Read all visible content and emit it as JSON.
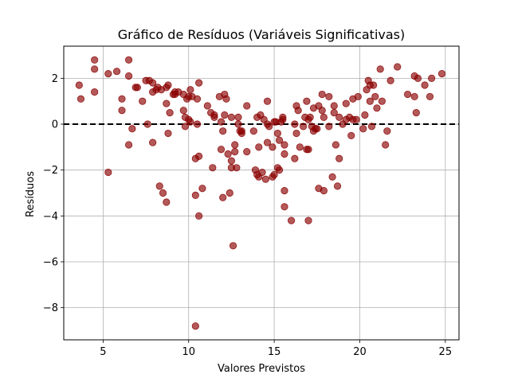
{
  "chart_data": {
    "type": "scatter",
    "title": "Gráfico de Resíduos (Variáveis Significativas)",
    "xlabel": "Valores Previstos",
    "ylabel": "Resíduos",
    "xlim": [
      2.7,
      25.8
    ],
    "ylim": [
      -9.4,
      3.4
    ],
    "xticks": [
      5,
      10,
      15,
      20,
      25
    ],
    "xtick_labels": [
      "5",
      "10",
      "15",
      "20",
      "25"
    ],
    "yticks": [
      -8,
      -6,
      -4,
      -2,
      0,
      2
    ],
    "ytick_labels": [
      "−8",
      "−6",
      "−4",
      "−2",
      "0",
      "2"
    ],
    "grid": true,
    "reference_line": 0,
    "colors": {
      "points": "#8b0000",
      "reference_line": "#000000",
      "grid": "#b0b0b0"
    },
    "points": [
      [
        3.6,
        1.7
      ],
      [
        3.7,
        1.1
      ],
      [
        4.5,
        2.8
      ],
      [
        4.5,
        2.4
      ],
      [
        4.5,
        1.4
      ],
      [
        5.3,
        2.2
      ],
      [
        5.3,
        -2.1
      ],
      [
        5.8,
        2.3
      ],
      [
        6.1,
        1.1
      ],
      [
        6.1,
        0.6
      ],
      [
        6.5,
        2.8
      ],
      [
        6.5,
        2.1
      ],
      [
        6.5,
        -0.9
      ],
      [
        6.7,
        -0.2
      ],
      [
        6.9,
        1.6
      ],
      [
        7.0,
        1.6
      ],
      [
        7.3,
        1.0
      ],
      [
        7.5,
        1.9
      ],
      [
        7.6,
        0.0
      ],
      [
        7.7,
        1.9
      ],
      [
        7.9,
        1.8
      ],
      [
        7.9,
        1.4
      ],
      [
        7.9,
        -0.8
      ],
      [
        8.1,
        1.5
      ],
      [
        8.2,
        1.6
      ],
      [
        8.3,
        -2.7
      ],
      [
        8.4,
        1.5
      ],
      [
        8.5,
        -3.0
      ],
      [
        8.7,
        1.6
      ],
      [
        8.7,
        0.9
      ],
      [
        8.7,
        -3.4
      ],
      [
        8.8,
        1.7
      ],
      [
        8.8,
        -0.4
      ],
      [
        8.9,
        0.5
      ],
      [
        9.1,
        1.3
      ],
      [
        9.2,
        1.3
      ],
      [
        9.2,
        1.4
      ],
      [
        9.4,
        1.4
      ],
      [
        9.7,
        0.6
      ],
      [
        9.7,
        1.3
      ],
      [
        9.8,
        0.3
      ],
      [
        9.8,
        -0.1
      ],
      [
        9.9,
        1.1
      ],
      [
        10.0,
        1.2
      ],
      [
        10.0,
        0.2
      ],
      [
        10.1,
        1.5
      ],
      [
        10.1,
        0.1
      ],
      [
        10.2,
        1.2
      ],
      [
        10.4,
        -1.5
      ],
      [
        10.4,
        -3.1
      ],
      [
        10.4,
        -8.8
      ],
      [
        10.5,
        1.1
      ],
      [
        10.5,
        0.0
      ],
      [
        10.6,
        1.8
      ],
      [
        10.6,
        -4.0
      ],
      [
        10.6,
        -1.4
      ],
      [
        10.8,
        -2.8
      ],
      [
        11.1,
        0.8
      ],
      [
        11.3,
        0.5
      ],
      [
        11.4,
        -1.9
      ],
      [
        11.5,
        0.4
      ],
      [
        11.5,
        0.3
      ],
      [
        11.8,
        1.2
      ],
      [
        11.9,
        0.1
      ],
      [
        11.9,
        -1.1
      ],
      [
        12.0,
        -0.3
      ],
      [
        12.0,
        -3.2
      ],
      [
        12.1,
        1.3
      ],
      [
        12.1,
        0.4
      ],
      [
        12.2,
        1.1
      ],
      [
        12.3,
        -1.3
      ],
      [
        12.4,
        -3.0
      ],
      [
        12.5,
        0.3
      ],
      [
        12.5,
        -1.6
      ],
      [
        12.5,
        -1.9
      ],
      [
        12.6,
        -5.3
      ],
      [
        12.7,
        -1.2
      ],
      [
        12.7,
        -0.9
      ],
      [
        12.8,
        -1.9
      ],
      [
        12.9,
        0.3
      ],
      [
        12.9,
        0.0
      ],
      [
        13.0,
        -0.3
      ],
      [
        13.1,
        -0.4
      ],
      [
        13.1,
        -0.3
      ],
      [
        13.4,
        0.8
      ],
      [
        13.4,
        -1.2
      ],
      [
        13.8,
        -0.3
      ],
      [
        13.9,
        -2.0
      ],
      [
        14.0,
        -2.2
      ],
      [
        14.0,
        0.3
      ],
      [
        14.1,
        -2.3
      ],
      [
        14.1,
        -1.0
      ],
      [
        14.2,
        0.4
      ],
      [
        14.3,
        -2.1
      ],
      [
        14.4,
        0.2
      ],
      [
        14.5,
        -2.4
      ],
      [
        14.6,
        1.0
      ],
      [
        14.6,
        -0.8
      ],
      [
        14.6,
        0.0
      ],
      [
        14.7,
        -0.1
      ],
      [
        14.9,
        -2.3
      ],
      [
        14.9,
        -1.0
      ],
      [
        15.0,
        0.1
      ],
      [
        15.0,
        -2.2
      ],
      [
        15.1,
        0.1
      ],
      [
        15.2,
        -0.4
      ],
      [
        15.2,
        -1.9
      ],
      [
        15.3,
        -2.0
      ],
      [
        15.3,
        -0.7
      ],
      [
        15.4,
        0.1
      ],
      [
        15.5,
        0.3
      ],
      [
        15.5,
        0.2
      ],
      [
        15.6,
        -2.9
      ],
      [
        15.6,
        -3.6
      ],
      [
        15.6,
        -1.3
      ],
      [
        15.6,
        -0.9
      ],
      [
        16.0,
        -4.2
      ],
      [
        16.2,
        0.0
      ],
      [
        16.2,
        -1.5
      ],
      [
        16.3,
        0.8
      ],
      [
        16.3,
        -0.4
      ],
      [
        16.4,
        0.6
      ],
      [
        16.5,
        -1.0
      ],
      [
        16.7,
        -0.1
      ],
      [
        16.8,
        0.3
      ],
      [
        16.9,
        1.0
      ],
      [
        16.9,
        -1.1
      ],
      [
        17.0,
        -1.1
      ],
      [
        17.0,
        -4.2
      ],
      [
        17.0,
        0.2
      ],
      [
        17.1,
        0.3
      ],
      [
        17.2,
        -0.1
      ],
      [
        17.3,
        0.7
      ],
      [
        17.3,
        -0.3
      ],
      [
        17.4,
        -0.2
      ],
      [
        17.5,
        -0.2
      ],
      [
        17.6,
        0.8
      ],
      [
        17.6,
        -2.8
      ],
      [
        17.8,
        1.3
      ],
      [
        17.8,
        0.6
      ],
      [
        17.9,
        -2.9
      ],
      [
        17.9,
        0.3
      ],
      [
        18.2,
        1.2
      ],
      [
        18.2,
        -0.1
      ],
      [
        18.4,
        -2.3
      ],
      [
        18.5,
        0.8
      ],
      [
        18.5,
        0.5
      ],
      [
        18.6,
        -0.9
      ],
      [
        18.7,
        -2.7
      ],
      [
        18.8,
        -1.5
      ],
      [
        18.8,
        0.3
      ],
      [
        19.0,
        0.0
      ],
      [
        19.2,
        0.9
      ],
      [
        19.2,
        0.2
      ],
      [
        19.4,
        0.3
      ],
      [
        19.5,
        -0.5
      ],
      [
        19.6,
        1.1
      ],
      [
        19.6,
        0.2
      ],
      [
        19.8,
        0.2
      ],
      [
        19.9,
        1.2
      ],
      [
        20.2,
        -0.2
      ],
      [
        20.3,
        0.4
      ],
      [
        20.4,
        1.5
      ],
      [
        20.5,
        1.9
      ],
      [
        20.6,
        1.7
      ],
      [
        20.6,
        1.0
      ],
      [
        20.7,
        -0.1
      ],
      [
        20.8,
        1.7
      ],
      [
        20.9,
        1.2
      ],
      [
        21.0,
        0.7
      ],
      [
        21.2,
        2.4
      ],
      [
        21.3,
        1.0
      ],
      [
        21.5,
        -0.9
      ],
      [
        21.6,
        -0.3
      ],
      [
        21.8,
        1.9
      ],
      [
        22.2,
        2.5
      ],
      [
        22.8,
        1.3
      ],
      [
        23.2,
        2.1
      ],
      [
        23.2,
        1.2
      ],
      [
        23.3,
        0.5
      ],
      [
        23.4,
        2.0
      ],
      [
        23.8,
        1.7
      ],
      [
        24.1,
        1.2
      ],
      [
        24.2,
        2.0
      ],
      [
        24.8,
        2.2
      ]
    ]
  }
}
